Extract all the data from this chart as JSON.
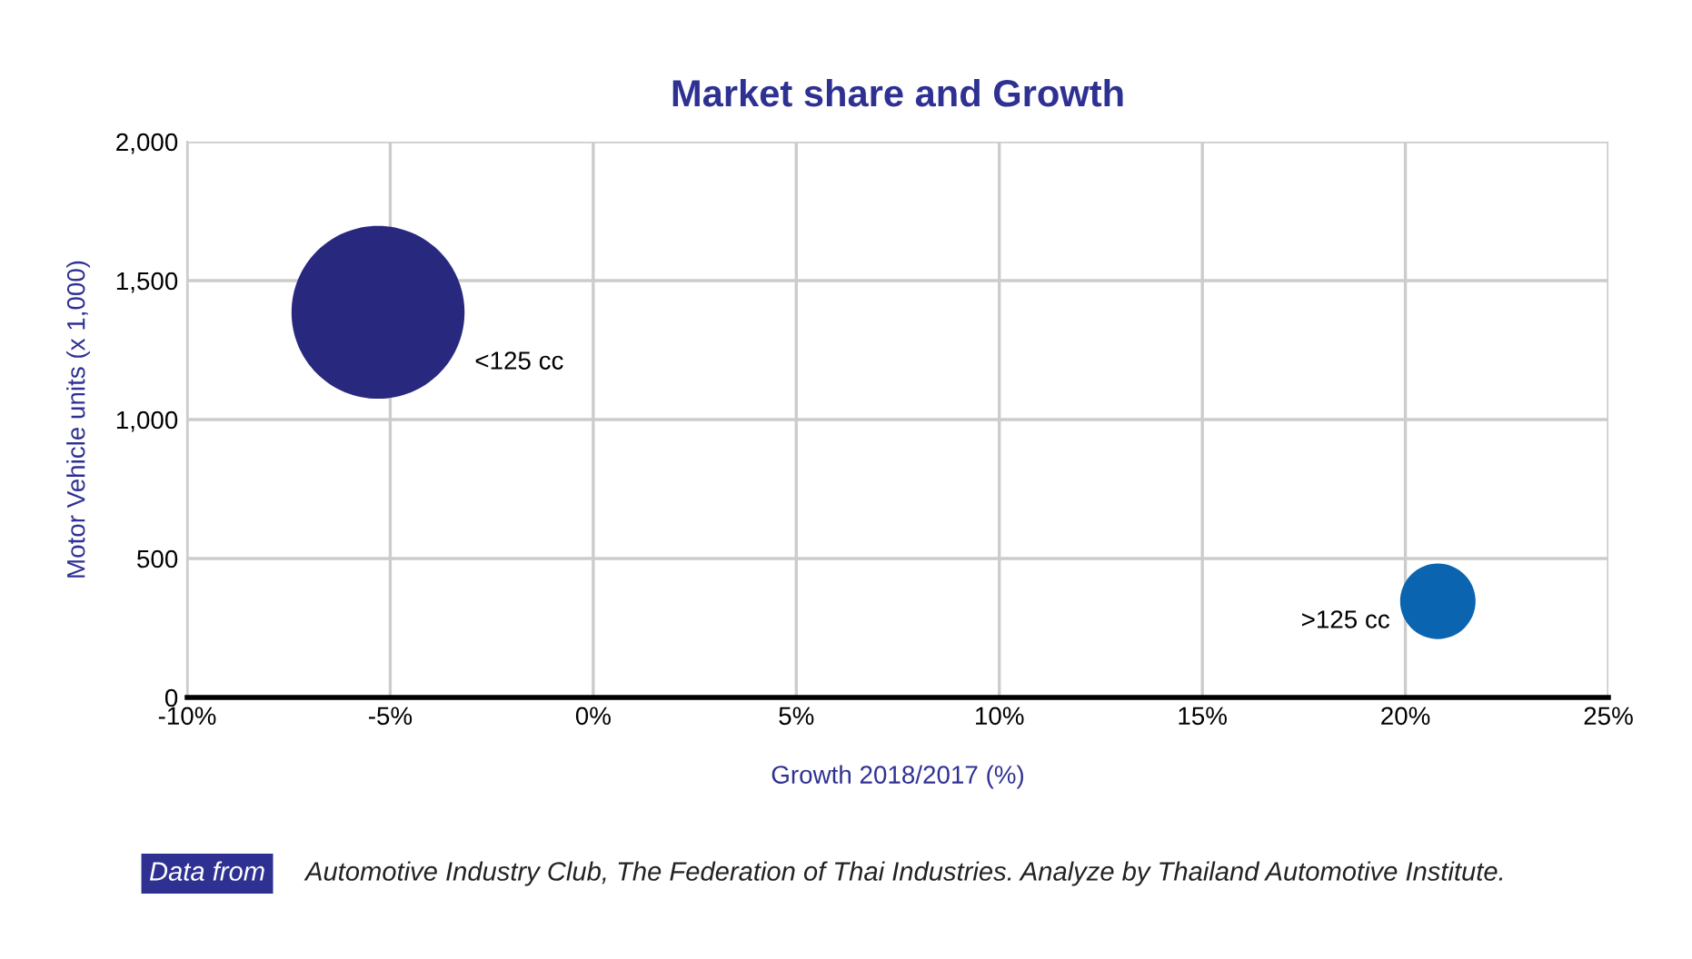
{
  "chart_data": {
    "type": "bubble",
    "title": "Market share and Growth",
    "xlabel": "Growth 2018/2017 (%)",
    "ylabel": "Motor Vehicle units (x 1,000)",
    "series": [
      {
        "name": "<125 cc",
        "color": "#29287f",
        "x": [
          -5.3
        ],
        "values": [
          1386
        ],
        "sizes": [
          1
        ]
      },
      {
        "name": ">125 cc",
        "color": "#0a64b0",
        "x": [
          20.8
        ],
        "values": [
          346
        ],
        "sizes": [
          0.19
        ]
      }
    ],
    "xlim": [
      -10,
      25
    ],
    "ylim": [
      0,
      2000
    ],
    "xticks": [
      {
        "value": -10,
        "label": "-10%"
      },
      {
        "value": -5,
        "label": "-5%"
      },
      {
        "value": 0,
        "label": "0%"
      },
      {
        "value": 5,
        "label": "5%"
      },
      {
        "value": 10,
        "label": "10%"
      },
      {
        "value": 15,
        "label": "15%"
      },
      {
        "value": 20,
        "label": "20%"
      },
      {
        "value": 25,
        "label": "25%"
      }
    ],
    "yticks": [
      0,
      {
        "value": 500,
        "label": "500"
      },
      {
        "value": 1000,
        "label": "1,000"
      },
      {
        "value": 1500,
        "label": "1,500"
      },
      {
        "value": 2000,
        "label": "2,000"
      }
    ],
    "grid": true,
    "legend": false,
    "annotations": [
      "Data from",
      "Automotive Industry Club, The Federation of Thai Industries. Analyze by Thailand Automotive Institute."
    ]
  }
}
